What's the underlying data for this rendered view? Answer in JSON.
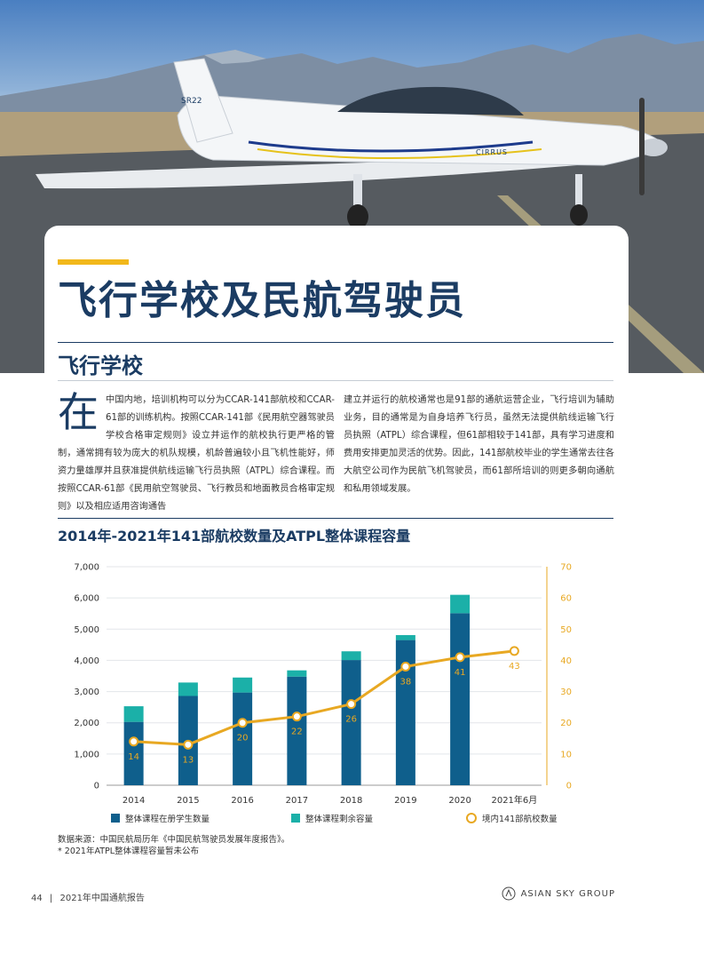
{
  "page": {
    "main_title": "飞行学校及民航驾驶员",
    "section_title": "飞行学校",
    "dropcap": "在",
    "para1": "中国内地，培训机构可以分为CCAR-141部航校和CCAR-61部的训练机构。按照CCAR-141部《民用航空器驾驶员学校合格审定规则》设立并运作的航校执行更严格的管制，通常拥有较为庞大的机队规模，机龄普遍较小且飞机性能好，师资力量雄厚并且获准提供航线运输飞行员执照（ATPL）综合课程。而按照CCAR-61部《民用航空驾驶员、飞行教员和地面教员合格审定规则》以及相应适用咨询通告",
    "para2": "建立并运行的航校通常也是91部的通航运营企业，飞行培训为辅助业务，目的通常是为自身培养飞行员，虽然无法提供航线运输飞行员执照（ATPL）综合课程，但61部相较于141部，具有学习进度和费用安排更加灵活的优势。因此，141部航校毕业的学生通常去往各大航空公司作为民航飞机驾驶员，而61部所培训的则更多朝向通航和私用领域发展。",
    "chart_title": "2014年-2021年141部航校数量及ATPL整体课程容量",
    "source_line1": "数据来源：中国民航局历年《中国民航驾驶员发展年度报告》。",
    "source_line2": "* 2021年ATPL整体课程容量暂未公布",
    "footer_page": "44",
    "footer_title": "2021年中国通航报告",
    "footer_brand": "ASIAN SKY GROUP"
  },
  "hero": {
    "aircraft_tail_label": "SR22",
    "aircraft_fuselage_label": "CIRRUS"
  },
  "chart_data": {
    "type": "bar",
    "categories": [
      "2014",
      "2015",
      "2016",
      "2017",
      "2018",
      "2019",
      "2020",
      "2021年6月"
    ],
    "series": [
      {
        "name": "整体课程在册学生数量",
        "kind": "stacked-bar",
        "axis": "left",
        "color": "#0f5f8c",
        "values": [
          2030,
          2860,
          2970,
          3480,
          4010,
          4650,
          5510,
          null
        ]
      },
      {
        "name": "整体课程剩余容量",
        "kind": "stacked-bar",
        "axis": "left",
        "color": "#1bb0a8",
        "values": [
          500,
          430,
          480,
          200,
          280,
          160,
          590,
          null
        ]
      },
      {
        "name": "境内141部航校数量",
        "kind": "line",
        "axis": "right",
        "color": "#e8a822",
        "values": [
          14,
          13,
          20,
          22,
          26,
          38,
          41,
          43
        ]
      }
    ],
    "y_left": {
      "min": 0,
      "max": 7000,
      "ticks": [
        "0",
        "1,000",
        "2,000",
        "3,000",
        "4,000",
        "5,000",
        "6,000",
        "7,000"
      ]
    },
    "y_right": {
      "min": 0,
      "max": 70,
      "ticks": [
        "0",
        "10",
        "20",
        "30",
        "40",
        "50",
        "60",
        "70"
      ]
    },
    "grid": "horizontal",
    "legend_position": "bottom"
  }
}
